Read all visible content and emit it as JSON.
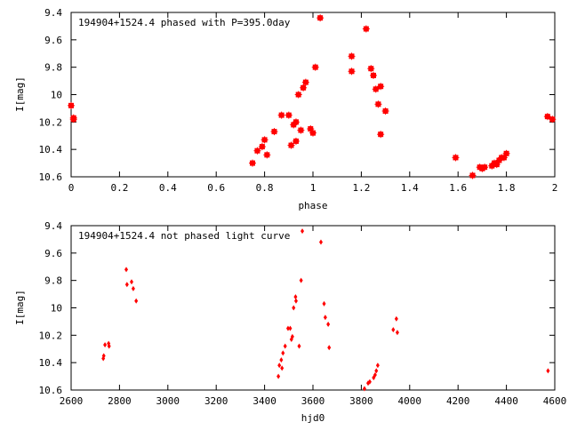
{
  "chart_data": [
    {
      "type": "scatter",
      "title": "194904+1524.4 phased with P=395.0day",
      "xlabel": "phase",
      "ylabel": "I[mag]",
      "xlim": [
        0,
        2
      ],
      "ylim": [
        10.6,
        9.4
      ],
      "y_inverted": true,
      "grid": false,
      "marker": "square",
      "color": "#ff0000",
      "x_ticks": [
        "0",
        "0.2",
        "0.4",
        "0.6",
        "0.8",
        "1",
        "1.2",
        "1.4",
        "1.6",
        "1.8",
        "2"
      ],
      "y_ticks": [
        "9.4",
        "9.6",
        "9.8",
        "10",
        "10.2",
        "10.4",
        "10.6"
      ],
      "series": [
        {
          "points": [
            [
              0.0,
              10.08
            ],
            [
              0.01,
              10.17
            ],
            [
              0.01,
              10.18
            ],
            [
              0.75,
              10.5
            ],
            [
              0.77,
              10.41
            ],
            [
              0.79,
              10.38
            ],
            [
              0.8,
              10.33
            ],
            [
              0.81,
              10.44
            ],
            [
              0.84,
              10.27
            ],
            [
              0.87,
              10.15
            ],
            [
              0.9,
              10.15
            ],
            [
              0.91,
              10.37
            ],
            [
              0.92,
              10.22
            ],
            [
              0.93,
              10.2
            ],
            [
              0.93,
              10.34
            ],
            [
              0.94,
              10.0
            ],
            [
              0.95,
              10.26
            ],
            [
              0.96,
              9.95
            ],
            [
              0.97,
              9.91
            ],
            [
              0.99,
              10.25
            ],
            [
              1.0,
              10.28
            ],
            [
              1.01,
              9.8
            ],
            [
              1.03,
              9.44
            ],
            [
              1.16,
              9.72
            ],
            [
              1.16,
              9.83
            ],
            [
              1.22,
              9.52
            ],
            [
              1.24,
              9.81
            ],
            [
              1.25,
              9.86
            ],
            [
              1.26,
              9.96
            ],
            [
              1.27,
              10.07
            ],
            [
              1.28,
              9.94
            ],
            [
              1.28,
              10.29
            ],
            [
              1.3,
              10.12
            ],
            [
              1.59,
              10.46
            ],
            [
              1.66,
              10.59
            ],
            [
              1.69,
              10.53
            ],
            [
              1.7,
              10.54
            ],
            [
              1.71,
              10.53
            ],
            [
              1.74,
              10.52
            ],
            [
              1.75,
              10.5
            ],
            [
              1.76,
              10.51
            ],
            [
              1.77,
              10.48
            ],
            [
              1.78,
              10.46
            ],
            [
              1.79,
              10.46
            ],
            [
              1.8,
              10.43
            ],
            [
              1.97,
              10.16
            ],
            [
              1.99,
              10.18
            ]
          ]
        }
      ]
    },
    {
      "type": "scatter",
      "title": "194904+1524.4 not phased light curve",
      "xlabel": "hjd0",
      "ylabel": "I[mag]",
      "xlim": [
        2600,
        4600
      ],
      "ylim": [
        10.6,
        9.4
      ],
      "y_inverted": true,
      "grid": false,
      "marker": "diamond",
      "color": "#ff0000",
      "x_ticks": [
        "2600",
        "2800",
        "3000",
        "3200",
        "3400",
        "3600",
        "3800",
        "4000",
        "4200",
        "4400",
        "4600"
      ],
      "y_ticks": [
        "9.4",
        "9.6",
        "9.8",
        "10",
        "10.2",
        "10.4",
        "10.6"
      ],
      "series": [
        {
          "points": [
            [
              2733,
              10.37
            ],
            [
              2735,
              10.35
            ],
            [
              2740,
              10.27
            ],
            [
              2755,
              10.26
            ],
            [
              2757,
              10.28
            ],
            [
              2828,
              9.72
            ],
            [
              2831,
              9.83
            ],
            [
              2850,
              9.81
            ],
            [
              2857,
              9.86
            ],
            [
              2869,
              9.95
            ],
            [
              3457,
              10.5
            ],
            [
              3461,
              10.42
            ],
            [
              3469,
              10.38
            ],
            [
              3472,
              10.44
            ],
            [
              3476,
              10.33
            ],
            [
              3485,
              10.28
            ],
            [
              3497,
              10.15
            ],
            [
              3506,
              10.15
            ],
            [
              3511,
              10.23
            ],
            [
              3515,
              10.21
            ],
            [
              3520,
              10.0
            ],
            [
              3528,
              9.92
            ],
            [
              3530,
              9.95
            ],
            [
              3543,
              10.28
            ],
            [
              3551,
              9.8
            ],
            [
              3556,
              9.44
            ],
            [
              3633,
              9.52
            ],
            [
              3646,
              9.97
            ],
            [
              3651,
              10.07
            ],
            [
              3663,
              10.12
            ],
            [
              3667,
              10.29
            ],
            [
              3813,
              10.59
            ],
            [
              3828,
              10.55
            ],
            [
              3835,
              10.54
            ],
            [
              3851,
              10.51
            ],
            [
              3857,
              10.49
            ],
            [
              3862,
              10.46
            ],
            [
              3868,
              10.42
            ],
            [
              3932,
              10.16
            ],
            [
              3945,
              10.08
            ],
            [
              3949,
              10.18
            ],
            [
              4572,
              10.46
            ]
          ]
        }
      ]
    }
  ]
}
